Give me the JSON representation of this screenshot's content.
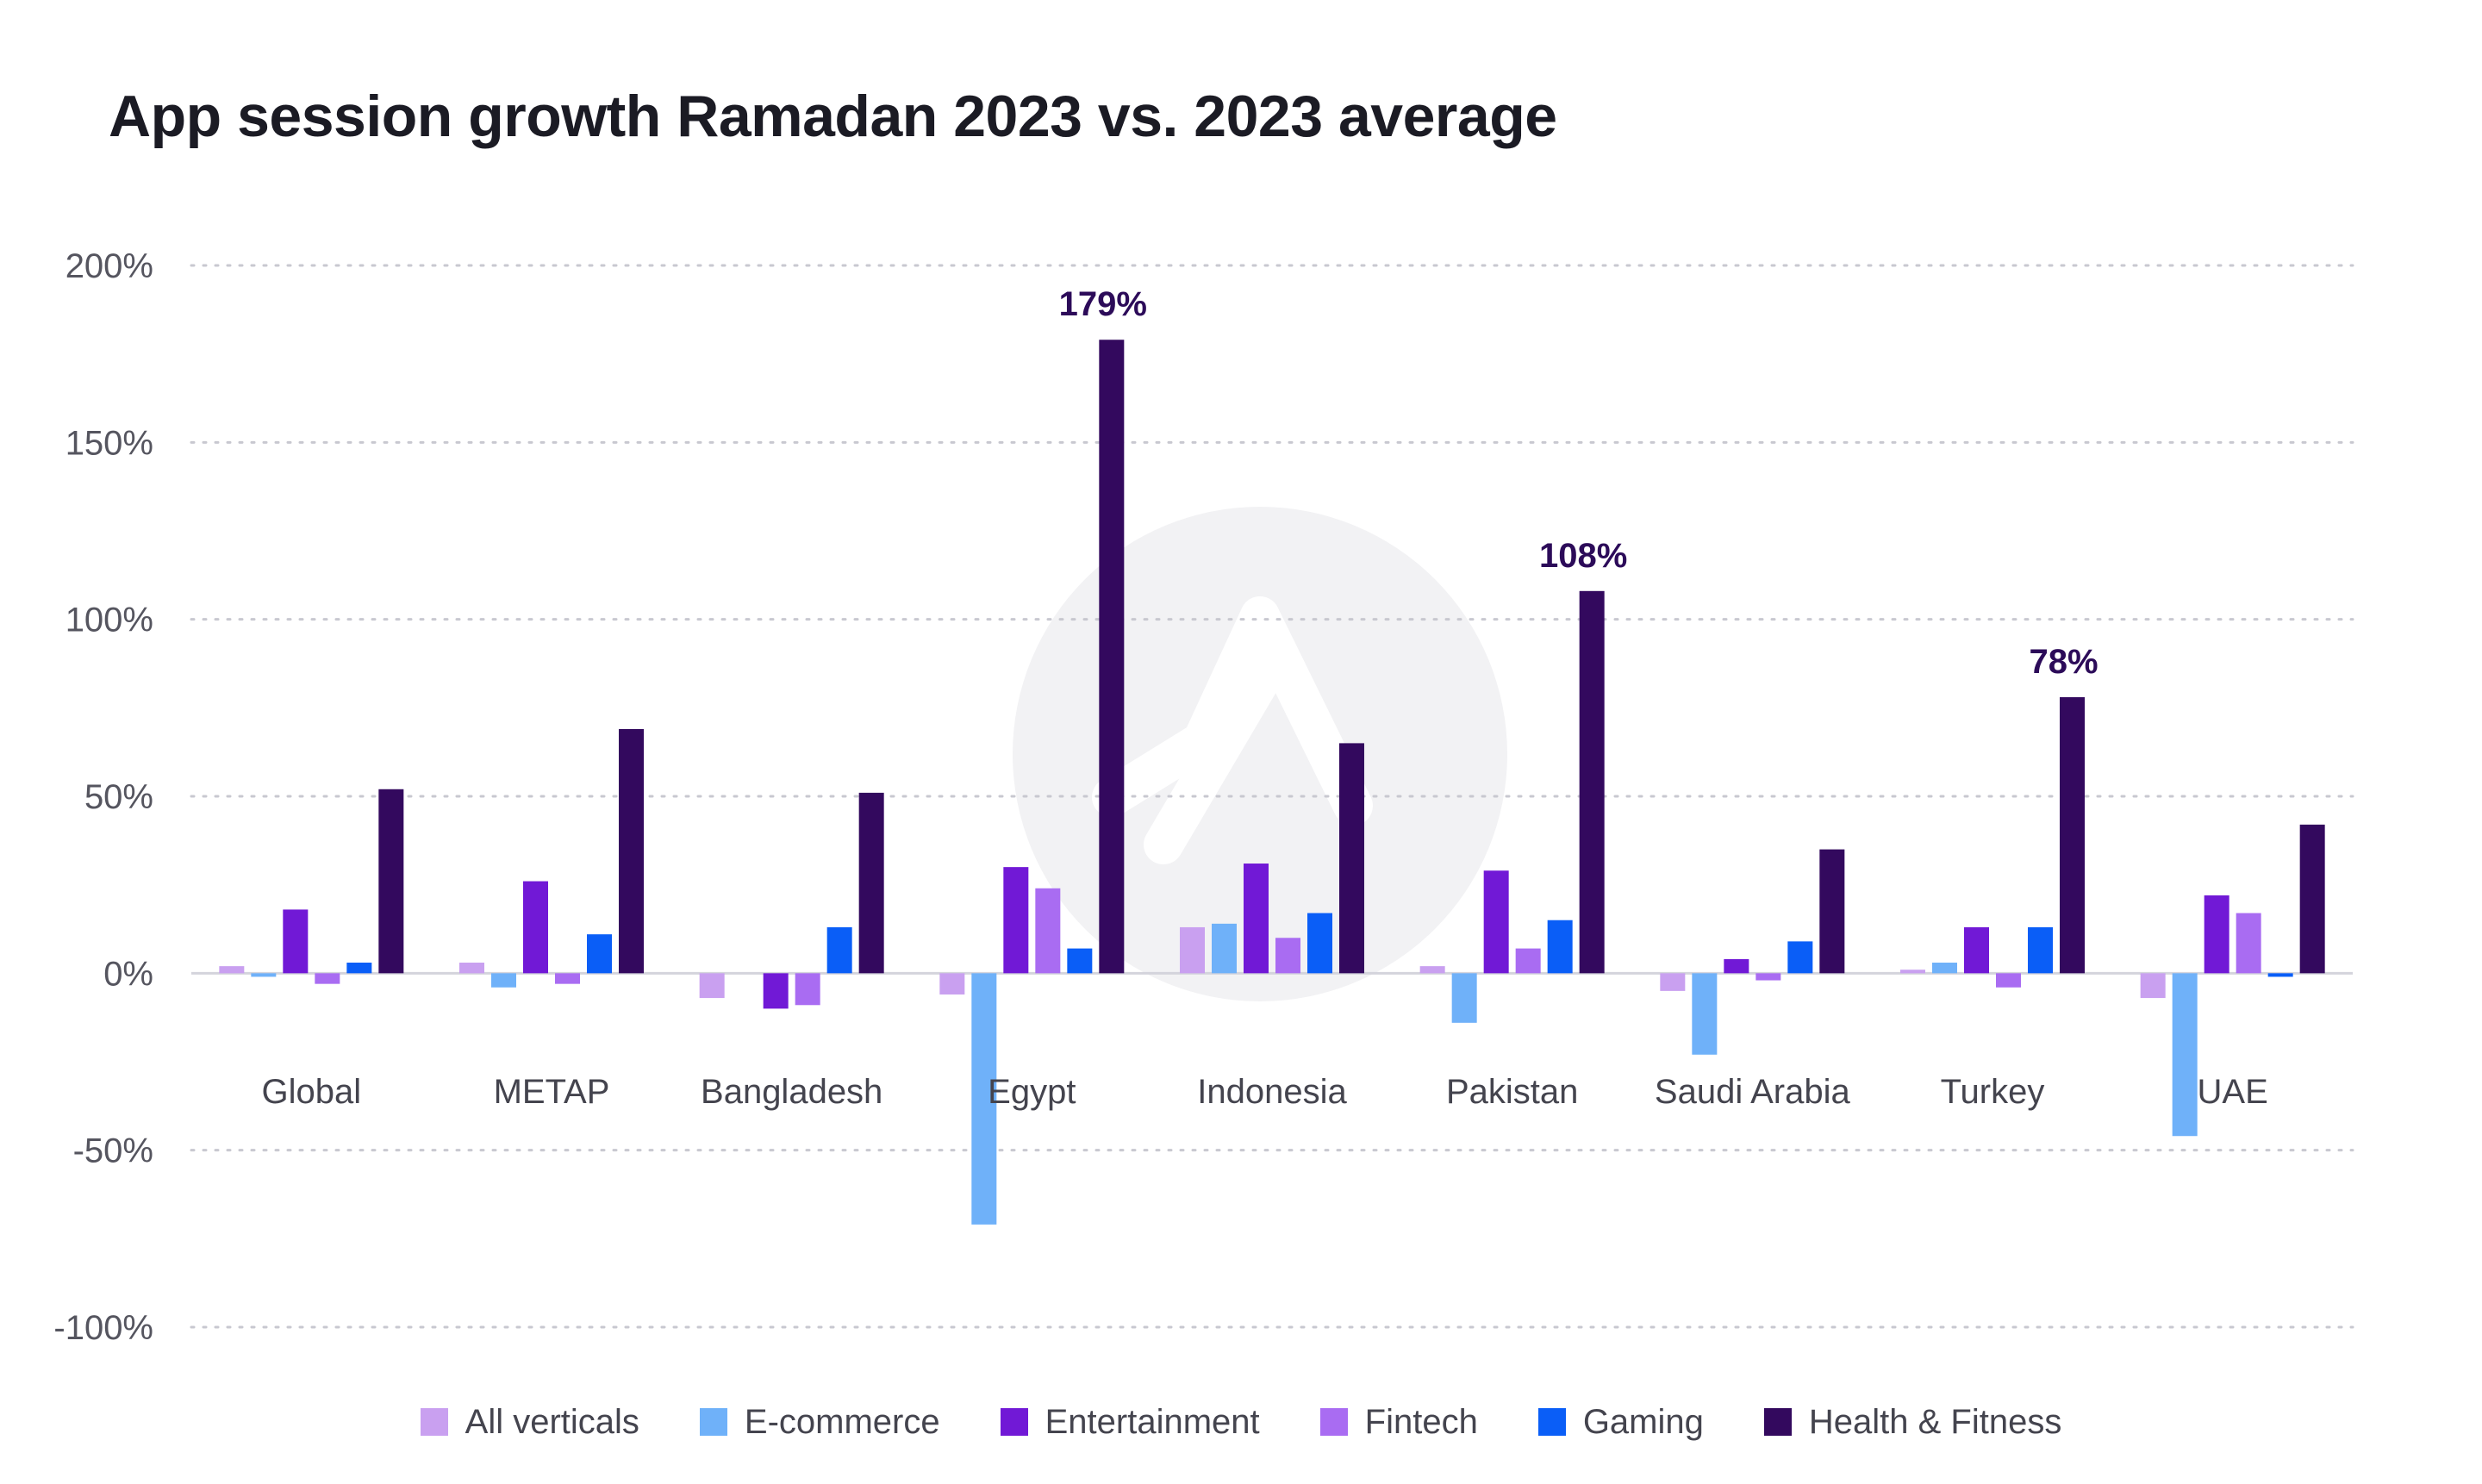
{
  "chart_data": {
    "type": "bar",
    "title": "App session growth Ramadan 2023 vs. 2023 average",
    "xlabel": "",
    "ylabel": "",
    "ylim": [
      -100,
      200
    ],
    "y_ticks": [
      200,
      150,
      100,
      50,
      0,
      -50,
      -100
    ],
    "y_tick_labels": [
      "200%",
      "150%",
      "100%",
      "50%",
      "0%",
      "-50%",
      "-100%"
    ],
    "grid": true,
    "legend_position": "bottom",
    "categories": [
      "Global",
      "METAP",
      "Bangladesh",
      "Egypt",
      "Indonesia",
      "Pakistan",
      "Saudi Arabia",
      "Turkey",
      "UAE"
    ],
    "series": [
      {
        "name": "All verticals",
        "color": "#c9a0f0",
        "values": [
          2,
          3,
          -7,
          -6,
          13,
          2,
          -5,
          1,
          -7
        ]
      },
      {
        "name": "E-commerce",
        "color": "#6fb1f9",
        "values": [
          -1,
          -4,
          0,
          -71,
          14,
          -14,
          -23,
          3,
          -46
        ]
      },
      {
        "name": "Entertainment",
        "color": "#7119d6",
        "values": [
          18,
          26,
          -10,
          30,
          31,
          29,
          4,
          13,
          22
        ]
      },
      {
        "name": "Fintech",
        "color": "#a96cf2",
        "values": [
          -3,
          -3,
          -9,
          24,
          10,
          7,
          -2,
          -4,
          17
        ]
      },
      {
        "name": "Gaming",
        "color": "#0a5ef7",
        "values": [
          3,
          11,
          13,
          7,
          17,
          15,
          9,
          13,
          -1
        ]
      },
      {
        "name": "Health & Fitness",
        "color": "#33095e",
        "values": [
          52,
          69,
          51,
          179,
          65,
          108,
          35,
          78,
          42
        ]
      }
    ],
    "annotations": [
      {
        "category": "Egypt",
        "series": "Health & Fitness",
        "text": "179%"
      },
      {
        "category": "Pakistan",
        "series": "Health & Fitness",
        "text": "108%"
      },
      {
        "category": "Turkey",
        "series": "Health & Fitness",
        "text": "78%"
      }
    ]
  },
  "colors": {
    "grid": "#c8c8d0",
    "zero_line": "#d4d4dc",
    "watermark": "#f2f2f4",
    "annotation": "#2c0b59"
  },
  "watermark_icon": "adjust-logo-icon"
}
